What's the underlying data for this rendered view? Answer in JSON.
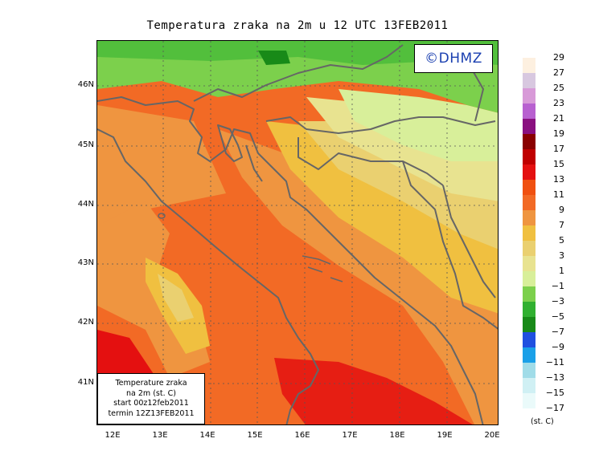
{
  "title": "Temperatura zraka na 2m u 12 UTC 13FEB2011",
  "copyright": "©DHMZ",
  "infobox": {
    "line1": "Temperature zraka",
    "line2": "na 2m (st. C)",
    "line3": "start 00z12feb2011",
    "line4": "termin 12Z13FEB2011"
  },
  "lat_labels": [
    "46N",
    "45N",
    "44N",
    "43N",
    "42N",
    "41N"
  ],
  "lon_labels": [
    "12E",
    "13E",
    "14E",
    "15E",
    "16E",
    "17E",
    "18E",
    "19E",
    "20E"
  ],
  "legend": {
    "unit": "(st. C)",
    "labels": [
      "29",
      "27",
      "25",
      "23",
      "21",
      "19",
      "17",
      "15",
      "13",
      "11",
      "9",
      "7",
      "5",
      "3",
      "1",
      "−1",
      "−3",
      "−5",
      "−7",
      "−9",
      "−11",
      "−13",
      "−15",
      "−17"
    ],
    "colors": [
      "#fdf0e0",
      "#d8c8e0",
      "#d89ad8",
      "#b860d0",
      "#8a1080",
      "#8a0000",
      "#c00000",
      "#e41010",
      "#f05010",
      "#f26a25",
      "#ef9540",
      "#f0c040",
      "#ead070",
      "#e8e390",
      "#d8ef9a",
      "#7cd04c",
      "#30b030",
      "#188a18",
      "#2050e0",
      "#1aa0e8",
      "#a0dce8",
      "#d0f0f4",
      "#eafafa"
    ]
  }
}
